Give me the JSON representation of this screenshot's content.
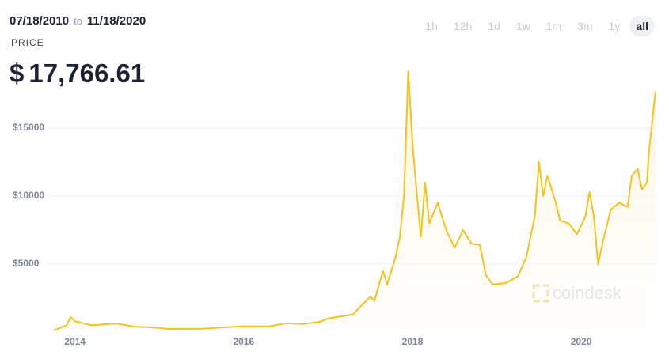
{
  "header": {
    "date_from": "07/18/2010",
    "date_sep": "to",
    "date_to": "11/18/2020",
    "price_caption": "PRICE",
    "currency": "$",
    "price": "17,766.61"
  },
  "ranges": [
    "1h",
    "12h",
    "1d",
    "1w",
    "1m",
    "3m",
    "1y",
    "all"
  ],
  "watermark": "coindesk",
  "chart_data": {
    "type": "line",
    "color": "#f5c31a",
    "grid": true,
    "area": true,
    "x": [
      2013.75,
      2013.9,
      2013.95,
      2014.0,
      2014.1,
      2014.2,
      2014.4,
      2014.5,
      2014.7,
      2014.9,
      2015.0,
      2015.1,
      2015.5,
      2015.9,
      2016.0,
      2016.3,
      2016.5,
      2016.7,
      2016.9,
      2017.0,
      2017.2,
      2017.3,
      2017.4,
      2017.5,
      2017.55,
      2017.65,
      2017.7,
      2017.8,
      2017.85,
      2017.9,
      2017.95,
      2018.0,
      2018.04,
      2018.1,
      2018.15,
      2018.2,
      2018.3,
      2018.4,
      2018.5,
      2018.6,
      2018.7,
      2018.8,
      2018.87,
      2018.95,
      2019.1,
      2019.25,
      2019.35,
      2019.45,
      2019.5,
      2019.55,
      2019.6,
      2019.7,
      2019.75,
      2019.85,
      2019.95,
      2020.05,
      2020.1,
      2020.15,
      2020.2,
      2020.27,
      2020.35,
      2020.45,
      2020.55,
      2020.6,
      2020.67,
      2020.72,
      2020.78,
      2020.8,
      2020.85,
      2020.88
    ],
    "values": [
      130,
      500,
      1100,
      800,
      650,
      500,
      600,
      620,
      400,
      350,
      300,
      230,
      250,
      400,
      430,
      420,
      650,
      600,
      750,
      1000,
      1200,
      1300,
      2000,
      2600,
      2300,
      4500,
      3500,
      5500,
      7000,
      10000,
      19200,
      14000,
      11000,
      7000,
      11000,
      8000,
      9500,
      7500,
      6200,
      7500,
      6500,
      6400,
      4200,
      3500,
      3600,
      4100,
      5500,
      8500,
      12500,
      10000,
      11500,
      9500,
      8200,
      8000,
      7200,
      8500,
      10300,
      8500,
      5000,
      7000,
      9000,
      9500,
      9200,
      11500,
      12000,
      10500,
      11000,
      13000,
      16000,
      17700
    ],
    "xlim": [
      2013.75,
      2020.9
    ],
    "xticks": [
      2014,
      2016,
      2018,
      2020
    ],
    "ylim": [
      0,
      20000
    ],
    "yticks": [
      {
        "value": 5000,
        "label": "$5000"
      },
      {
        "value": 10000,
        "label": "$10000"
      },
      {
        "value": 15000,
        "label": "$15000"
      }
    ]
  }
}
